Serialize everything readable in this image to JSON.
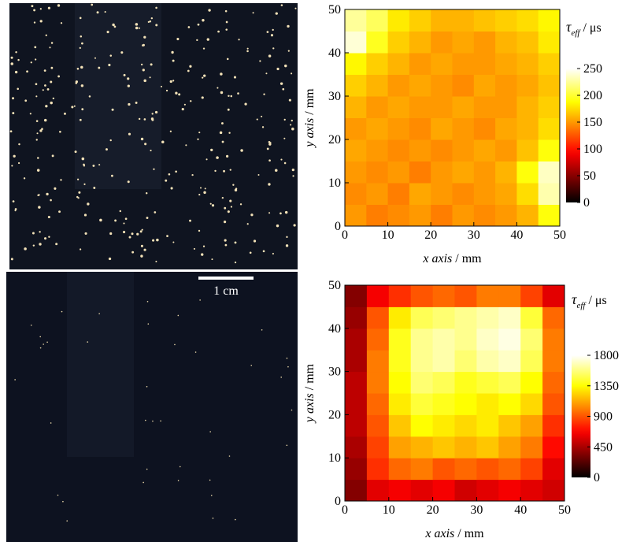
{
  "scale_bar": {
    "label": "1 cm"
  },
  "chart_data": [
    {
      "type": "heatmap",
      "xlabel_var": "x axis",
      "xlabel_unit": " / mm",
      "ylabel_var": "y axis",
      "ylabel_unit": " / mm",
      "xlim": [
        0,
        50
      ],
      "ylim": [
        0,
        50
      ],
      "xticks": [
        0,
        10,
        20,
        30,
        40,
        50
      ],
      "yticks": [
        0,
        10,
        20,
        30,
        40,
        50
      ],
      "x": [
        2.5,
        7.5,
        12.5,
        17.5,
        22.5,
        27.5,
        32.5,
        37.5,
        42.5,
        47.5
      ],
      "y": [
        2.5,
        7.5,
        12.5,
        17.5,
        22.5,
        27.5,
        32.5,
        37.5,
        42.5,
        47.5
      ],
      "z": [
        [
          150,
          140,
          145,
          150,
          140,
          150,
          145,
          150,
          160,
          190
        ],
        [
          145,
          150,
          140,
          155,
          150,
          145,
          150,
          155,
          175,
          230
        ],
        [
          150,
          145,
          150,
          140,
          150,
          155,
          150,
          160,
          190,
          235
        ],
        [
          155,
          150,
          145,
          150,
          145,
          150,
          155,
          150,
          165,
          190
        ],
        [
          150,
          155,
          150,
          145,
          155,
          150,
          145,
          155,
          160,
          175
        ],
        [
          160,
          150,
          155,
          150,
          150,
          155,
          150,
          150,
          160,
          170
        ],
        [
          170,
          160,
          150,
          155,
          150,
          145,
          155,
          150,
          155,
          165
        ],
        [
          185,
          170,
          160,
          150,
          155,
          150,
          150,
          155,
          160,
          170
        ],
        [
          240,
          195,
          170,
          160,
          150,
          155,
          150,
          160,
          165,
          180
        ],
        [
          225,
          210,
          180,
          170,
          160,
          160,
          165,
          170,
          175,
          185
        ]
      ],
      "cmap": "hot",
      "clim": [
        0,
        250
      ],
      "cbticks": [
        0,
        50,
        100,
        150,
        200,
        250
      ],
      "colorbar_symbol": "τ",
      "colorbar_subscript": "eff",
      "colorbar_unit": " / μs"
    },
    {
      "type": "heatmap",
      "xlabel_var": "x axis",
      "xlabel_unit": " / mm",
      "ylabel_var": "y axis",
      "ylabel_unit": " / mm",
      "xlim": [
        0,
        50
      ],
      "ylim": [
        0,
        50
      ],
      "xticks": [
        0,
        10,
        20,
        30,
        40,
        50
      ],
      "yticks": [
        0,
        10,
        20,
        30,
        40,
        50
      ],
      "x": [
        2.5,
        7.5,
        12.5,
        17.5,
        22.5,
        27.5,
        32.5,
        37.5,
        42.5,
        47.5
      ],
      "y": [
        2.5,
        7.5,
        12.5,
        17.5,
        22.5,
        27.5,
        32.5,
        37.5,
        42.5,
        47.5
      ],
      "z": [
        [
          350,
          600,
          650,
          600,
          650,
          550,
          600,
          650,
          600,
          550
        ],
        [
          400,
          800,
          950,
          1000,
          900,
          950,
          900,
          950,
          850,
          600
        ],
        [
          450,
          850,
          1100,
          1150,
          1200,
          1150,
          1200,
          1100,
          1000,
          700
        ],
        [
          500,
          900,
          1200,
          1350,
          1300,
          1250,
          1300,
          1200,
          1100,
          800
        ],
        [
          500,
          950,
          1300,
          1450,
          1400,
          1350,
          1300,
          1350,
          1250,
          900
        ],
        [
          500,
          1000,
          1350,
          1550,
          1500,
          1400,
          1450,
          1500,
          1350,
          950
        ],
        [
          450,
          1000,
          1400,
          1600,
          1650,
          1550,
          1650,
          1700,
          1500,
          1000
        ],
        [
          450,
          950,
          1400,
          1600,
          1650,
          1600,
          1700,
          1750,
          1550,
          1000
        ],
        [
          400,
          900,
          1300,
          1500,
          1550,
          1600,
          1650,
          1700,
          1450,
          950
        ],
        [
          350,
          650,
          800,
          900,
          950,
          900,
          1000,
          1000,
          850,
          600
        ]
      ],
      "cmap": "hot",
      "clim": [
        0,
        1800
      ],
      "cbticks": [
        0,
        450,
        900,
        1350,
        1800
      ],
      "colorbar_symbol": "τ",
      "colorbar_subscript": "eff",
      "colorbar_unit": " / μs"
    }
  ]
}
